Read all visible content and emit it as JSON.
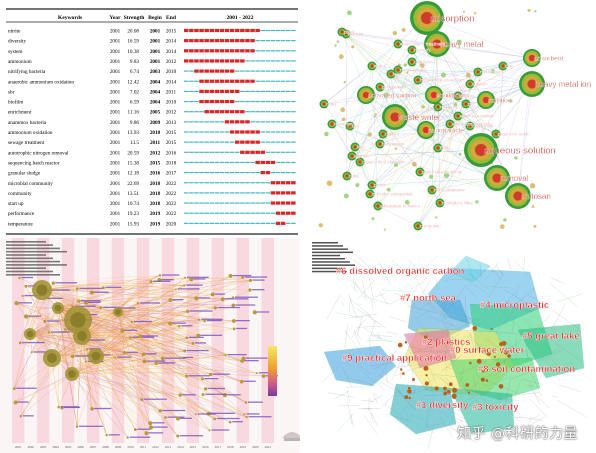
{
  "burst_table": {
    "headers": {
      "keyword": "Keywords",
      "year": "Year",
      "strength": "Strength",
      "begin": "Begin",
      "end": "End",
      "range": "2001 - 2022"
    },
    "range_start": 2001,
    "range_end": 2022,
    "colors": {
      "burst": "#d62728",
      "base": "#3fb8c4"
    },
    "rows": [
      {
        "keyword": "nitrite",
        "year": "2001",
        "strength": "20.08",
        "begin": "2001",
        "end": "2015"
      },
      {
        "keyword": "diversity",
        "year": "2001",
        "strength": "16.59",
        "begin": "2001",
        "end": "2014"
      },
      {
        "keyword": "system",
        "year": "2001",
        "strength": "10.38",
        "begin": "2001",
        "end": "2014"
      },
      {
        "keyword": "ammonium",
        "year": "2001",
        "strength": "9.83",
        "begin": "2001",
        "end": "2012"
      },
      {
        "keyword": "nitrifying bacteria",
        "year": "2001",
        "strength": "6.74",
        "begin": "2003",
        "end": "2010"
      },
      {
        "keyword": "anaerobic ammonium oxidation",
        "year": "2001",
        "strength": "12.42",
        "begin": "2004",
        "end": "2014"
      },
      {
        "keyword": "sbr",
        "year": "2001",
        "strength": "7.02",
        "begin": "2004",
        "end": "2011"
      },
      {
        "keyword": "biofilm",
        "year": "2001",
        "strength": "6.59",
        "begin": "2004",
        "end": "2010"
      },
      {
        "keyword": "enrichment",
        "year": "2001",
        "strength": "11.16",
        "begin": "2005",
        "end": "2012"
      },
      {
        "keyword": "anammox bacteria",
        "year": "2001",
        "strength": "9.86",
        "begin": "2009",
        "end": "2013"
      },
      {
        "keyword": "ammonium oxidation",
        "year": "2001",
        "strength": "13.93",
        "begin": "2010",
        "end": "2015"
      },
      {
        "keyword": "sewage treatment",
        "year": "2001",
        "strength": "13.5",
        "begin": "2011",
        "end": "2015"
      },
      {
        "keyword": "autotrophic nitrogen removal",
        "year": "2001",
        "strength": "20.59",
        "begin": "2012",
        "end": "2016"
      },
      {
        "keyword": "sequencing batch reactor",
        "year": "2001",
        "strength": "15.38",
        "begin": "2015",
        "end": "2018"
      },
      {
        "keyword": "granular sludge",
        "year": "2001",
        "strength": "12.18",
        "begin": "2016",
        "end": "2017"
      },
      {
        "keyword": "microbial community",
        "year": "2001",
        "strength": "22.69",
        "begin": "2018",
        "end": "2022"
      },
      {
        "keyword": "community",
        "year": "2001",
        "strength": "13.51",
        "begin": "2018",
        "end": "2022"
      },
      {
        "keyword": "start up",
        "year": "2001",
        "strength": "10.74",
        "begin": "2018",
        "end": "2022"
      },
      {
        "keyword": "performance",
        "year": "2001",
        "strength": "19.23",
        "begin": "2019",
        "end": "2022"
      },
      {
        "keyword": "temperature",
        "year": "2001",
        "strength": "15.93",
        "begin": "2019",
        "end": "2020"
      }
    ]
  },
  "network": {
    "node_color_outer": "#3a9a3a",
    "node_color_inner": "#d43a2a",
    "label_color": "#c0392b",
    "nodes": [
      {
        "label": "adsorption",
        "size": 4
      },
      {
        "label": "heavy metal",
        "size": 3
      },
      {
        "label": "adsorbent",
        "size": 2
      },
      {
        "label": "heavy metal ion",
        "size": 3
      },
      {
        "label": "waste water",
        "size": 3
      },
      {
        "label": "aqueous solution",
        "size": 4
      },
      {
        "label": "removal",
        "size": 3
      },
      {
        "label": "chitosan",
        "size": 3
      },
      {
        "label": "sorption",
        "size": 2
      },
      {
        "label": "equilibrium",
        "size": 2
      },
      {
        "label": "activated carbon",
        "size": 2
      },
      {
        "label": "nanoparticle",
        "size": 2
      },
      {
        "label": "kinetics",
        "size": 1
      },
      {
        "label": "water",
        "size": 1
      },
      {
        "label": "biosorption",
        "size": 1
      },
      {
        "label": "ion",
        "size": 1
      },
      {
        "label": "pb(ii)",
        "size": 1
      },
      {
        "label": "cu(ii)",
        "size": 1
      },
      {
        "label": "composite",
        "size": 1
      },
      {
        "label": "nanocomposite",
        "size": 1
      },
      {
        "label": "copper",
        "size": 1
      },
      {
        "label": "efficient removal",
        "size": 1
      },
      {
        "label": "lead",
        "size": 1
      },
      {
        "label": "cd(ii)",
        "size": 1
      },
      {
        "label": "membrane",
        "size": 1
      },
      {
        "label": "cadmium",
        "size": 1
      },
      {
        "label": "hexavalent chromium",
        "size": 1
      },
      {
        "label": "mechanism",
        "size": 1
      },
      {
        "label": "graphene oxide",
        "size": 1
      },
      {
        "label": "methylene blue",
        "size": 1
      },
      {
        "label": "performance",
        "size": 1
      },
      {
        "label": "dye",
        "size": 1
      },
      {
        "label": "recovery",
        "size": 1
      },
      {
        "label": "solution",
        "size": 1
      },
      {
        "label": "zinc",
        "size": 1
      },
      {
        "label": "mercury",
        "size": 1
      },
      {
        "label": "pectin",
        "size": 1
      },
      {
        "label": "waste water treatment",
        "size": 1
      },
      {
        "label": "metal ion",
        "size": 1
      },
      {
        "label": "cross linked chitosan",
        "size": 1
      },
      {
        "label": "selective adsorption",
        "size": 1
      },
      {
        "label": "glycol oil adsorbent",
        "size": 1
      },
      {
        "label": "fiber",
        "size": 1
      },
      {
        "label": "adsorption property",
        "size": 1
      },
      {
        "label": "alginate",
        "size": 1
      },
      {
        "label": "copper ion",
        "size": 1
      },
      {
        "label": "adsorption behavior",
        "size": 1
      },
      {
        "label": "carbon",
        "size": 1
      },
      {
        "label": "gel",
        "size": 1
      }
    ]
  },
  "timezone": {
    "years": [
      "2001",
      "2002",
      "2003",
      "2004",
      "2005",
      "2006",
      "2007",
      "2008",
      "2009",
      "2010",
      "2011",
      "2012",
      "2013",
      "2014",
      "2015",
      "2016",
      "2017",
      "2018",
      "2019",
      "2020",
      "2021"
    ]
  },
  "clusters": {
    "items": [
      {
        "label": "#6 dissolved organic carbon",
        "color": "#2e9fd8"
      },
      {
        "label": "#7 north sea",
        "color": "#4bb0d6"
      },
      {
        "label": "#4 microplastic",
        "color": "#2ecc71"
      },
      {
        "label": "#5 great lake",
        "color": "#2bb673"
      },
      {
        "label": "#2 plastics",
        "color": "#e84393"
      },
      {
        "label": "#0 surface water",
        "color": "#f1e34a"
      },
      {
        "label": "#9 practical application",
        "color": "#3aa0e0"
      },
      {
        "label": "#8 soil contamination",
        "color": "#3bd16f"
      },
      {
        "label": "#1 diversity",
        "color": "#1fa6b4"
      },
      {
        "label": "#3 toxicity",
        "color": "#1abc9c"
      }
    ],
    "label_color": "#e81c1c"
  },
  "watermark": "知乎 @科研的力量"
}
